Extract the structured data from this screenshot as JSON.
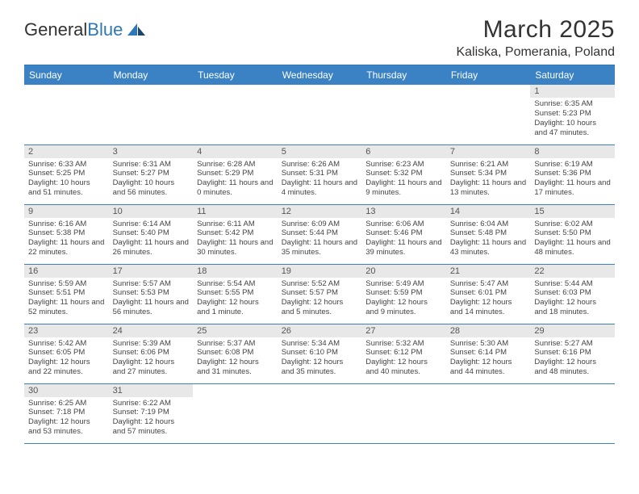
{
  "logo": {
    "text1": "General",
    "text2": "Blue"
  },
  "title": "March 2025",
  "location": "Kaliska, Pomerania, Poland",
  "colors": {
    "header_bg": "#3b82c4",
    "header_text": "#ffffff",
    "rule": "#2f77b5",
    "daynum_bg": "#e8e8e8",
    "text": "#3a3a3a"
  },
  "weekdays": [
    "Sunday",
    "Monday",
    "Tuesday",
    "Wednesday",
    "Thursday",
    "Friday",
    "Saturday"
  ],
  "weeks": [
    [
      null,
      null,
      null,
      null,
      null,
      null,
      {
        "day": "1",
        "sunrise": "Sunrise: 6:35 AM",
        "sunset": "Sunset: 5:23 PM",
        "daylight": "Daylight: 10 hours and 47 minutes."
      }
    ],
    [
      {
        "day": "2",
        "sunrise": "Sunrise: 6:33 AM",
        "sunset": "Sunset: 5:25 PM",
        "daylight": "Daylight: 10 hours and 51 minutes."
      },
      {
        "day": "3",
        "sunrise": "Sunrise: 6:31 AM",
        "sunset": "Sunset: 5:27 PM",
        "daylight": "Daylight: 10 hours and 56 minutes."
      },
      {
        "day": "4",
        "sunrise": "Sunrise: 6:28 AM",
        "sunset": "Sunset: 5:29 PM",
        "daylight": "Daylight: 11 hours and 0 minutes."
      },
      {
        "day": "5",
        "sunrise": "Sunrise: 6:26 AM",
        "sunset": "Sunset: 5:31 PM",
        "daylight": "Daylight: 11 hours and 4 minutes."
      },
      {
        "day": "6",
        "sunrise": "Sunrise: 6:23 AM",
        "sunset": "Sunset: 5:32 PM",
        "daylight": "Daylight: 11 hours and 9 minutes."
      },
      {
        "day": "7",
        "sunrise": "Sunrise: 6:21 AM",
        "sunset": "Sunset: 5:34 PM",
        "daylight": "Daylight: 11 hours and 13 minutes."
      },
      {
        "day": "8",
        "sunrise": "Sunrise: 6:19 AM",
        "sunset": "Sunset: 5:36 PM",
        "daylight": "Daylight: 11 hours and 17 minutes."
      }
    ],
    [
      {
        "day": "9",
        "sunrise": "Sunrise: 6:16 AM",
        "sunset": "Sunset: 5:38 PM",
        "daylight": "Daylight: 11 hours and 22 minutes."
      },
      {
        "day": "10",
        "sunrise": "Sunrise: 6:14 AM",
        "sunset": "Sunset: 5:40 PM",
        "daylight": "Daylight: 11 hours and 26 minutes."
      },
      {
        "day": "11",
        "sunrise": "Sunrise: 6:11 AM",
        "sunset": "Sunset: 5:42 PM",
        "daylight": "Daylight: 11 hours and 30 minutes."
      },
      {
        "day": "12",
        "sunrise": "Sunrise: 6:09 AM",
        "sunset": "Sunset: 5:44 PM",
        "daylight": "Daylight: 11 hours and 35 minutes."
      },
      {
        "day": "13",
        "sunrise": "Sunrise: 6:06 AM",
        "sunset": "Sunset: 5:46 PM",
        "daylight": "Daylight: 11 hours and 39 minutes."
      },
      {
        "day": "14",
        "sunrise": "Sunrise: 6:04 AM",
        "sunset": "Sunset: 5:48 PM",
        "daylight": "Daylight: 11 hours and 43 minutes."
      },
      {
        "day": "15",
        "sunrise": "Sunrise: 6:02 AM",
        "sunset": "Sunset: 5:50 PM",
        "daylight": "Daylight: 11 hours and 48 minutes."
      }
    ],
    [
      {
        "day": "16",
        "sunrise": "Sunrise: 5:59 AM",
        "sunset": "Sunset: 5:51 PM",
        "daylight": "Daylight: 11 hours and 52 minutes."
      },
      {
        "day": "17",
        "sunrise": "Sunrise: 5:57 AM",
        "sunset": "Sunset: 5:53 PM",
        "daylight": "Daylight: 11 hours and 56 minutes."
      },
      {
        "day": "18",
        "sunrise": "Sunrise: 5:54 AM",
        "sunset": "Sunset: 5:55 PM",
        "daylight": "Daylight: 12 hours and 1 minute."
      },
      {
        "day": "19",
        "sunrise": "Sunrise: 5:52 AM",
        "sunset": "Sunset: 5:57 PM",
        "daylight": "Daylight: 12 hours and 5 minutes."
      },
      {
        "day": "20",
        "sunrise": "Sunrise: 5:49 AM",
        "sunset": "Sunset: 5:59 PM",
        "daylight": "Daylight: 12 hours and 9 minutes."
      },
      {
        "day": "21",
        "sunrise": "Sunrise: 5:47 AM",
        "sunset": "Sunset: 6:01 PM",
        "daylight": "Daylight: 12 hours and 14 minutes."
      },
      {
        "day": "22",
        "sunrise": "Sunrise: 5:44 AM",
        "sunset": "Sunset: 6:03 PM",
        "daylight": "Daylight: 12 hours and 18 minutes."
      }
    ],
    [
      {
        "day": "23",
        "sunrise": "Sunrise: 5:42 AM",
        "sunset": "Sunset: 6:05 PM",
        "daylight": "Daylight: 12 hours and 22 minutes."
      },
      {
        "day": "24",
        "sunrise": "Sunrise: 5:39 AM",
        "sunset": "Sunset: 6:06 PM",
        "daylight": "Daylight: 12 hours and 27 minutes."
      },
      {
        "day": "25",
        "sunrise": "Sunrise: 5:37 AM",
        "sunset": "Sunset: 6:08 PM",
        "daylight": "Daylight: 12 hours and 31 minutes."
      },
      {
        "day": "26",
        "sunrise": "Sunrise: 5:34 AM",
        "sunset": "Sunset: 6:10 PM",
        "daylight": "Daylight: 12 hours and 35 minutes."
      },
      {
        "day": "27",
        "sunrise": "Sunrise: 5:32 AM",
        "sunset": "Sunset: 6:12 PM",
        "daylight": "Daylight: 12 hours and 40 minutes."
      },
      {
        "day": "28",
        "sunrise": "Sunrise: 5:30 AM",
        "sunset": "Sunset: 6:14 PM",
        "daylight": "Daylight: 12 hours and 44 minutes."
      },
      {
        "day": "29",
        "sunrise": "Sunrise: 5:27 AM",
        "sunset": "Sunset: 6:16 PM",
        "daylight": "Daylight: 12 hours and 48 minutes."
      }
    ],
    [
      {
        "day": "30",
        "sunrise": "Sunrise: 6:25 AM",
        "sunset": "Sunset: 7:18 PM",
        "daylight": "Daylight: 12 hours and 53 minutes."
      },
      {
        "day": "31",
        "sunrise": "Sunrise: 6:22 AM",
        "sunset": "Sunset: 7:19 PM",
        "daylight": "Daylight: 12 hours and 57 minutes."
      },
      null,
      null,
      null,
      null,
      null
    ]
  ]
}
